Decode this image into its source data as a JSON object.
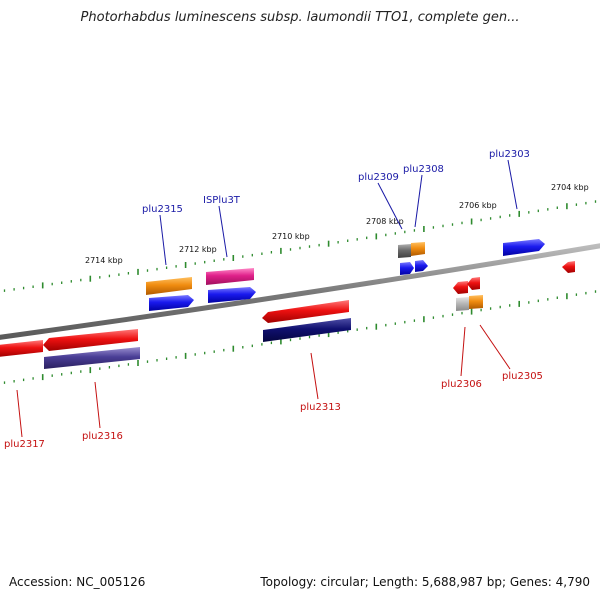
{
  "title": "Photorhabdus luminescens subsp. laumondii TTO1, complete gen...",
  "footer": {
    "accession": "Accession: NC_005126",
    "summary": "Topology: circular; Length: 5,688,987 bp; Genes: 4,790"
  },
  "scale": {
    "ticks": [
      "2714 kbp",
      "2712 kbp",
      "2710 kbp",
      "2708 kbp",
      "2706 kbp",
      "2704 kbp"
    ]
  },
  "genes_forward": [
    "plu2315",
    "ISPlu3T",
    "plu2309",
    "plu2308",
    "plu2303"
  ],
  "genes_reverse": [
    "plu2317",
    "plu2316",
    "plu2313",
    "plu2306",
    "plu2305"
  ],
  "colors": {
    "backbone": "#8a8a8a",
    "tick": "#2e8b2e",
    "forward_label": "#1a1aa6",
    "reverse_label": "#c41010",
    "gene_red": "#ee1111",
    "gene_blue": "#1a1aee",
    "gene_orange": "#f08c10",
    "gene_pink": "#e0208a",
    "gene_navy": "#101070",
    "gene_purple": "#4a3e96",
    "gene_gray": "#7a7a7a",
    "gene_lightgray": "#b8b8b8"
  }
}
